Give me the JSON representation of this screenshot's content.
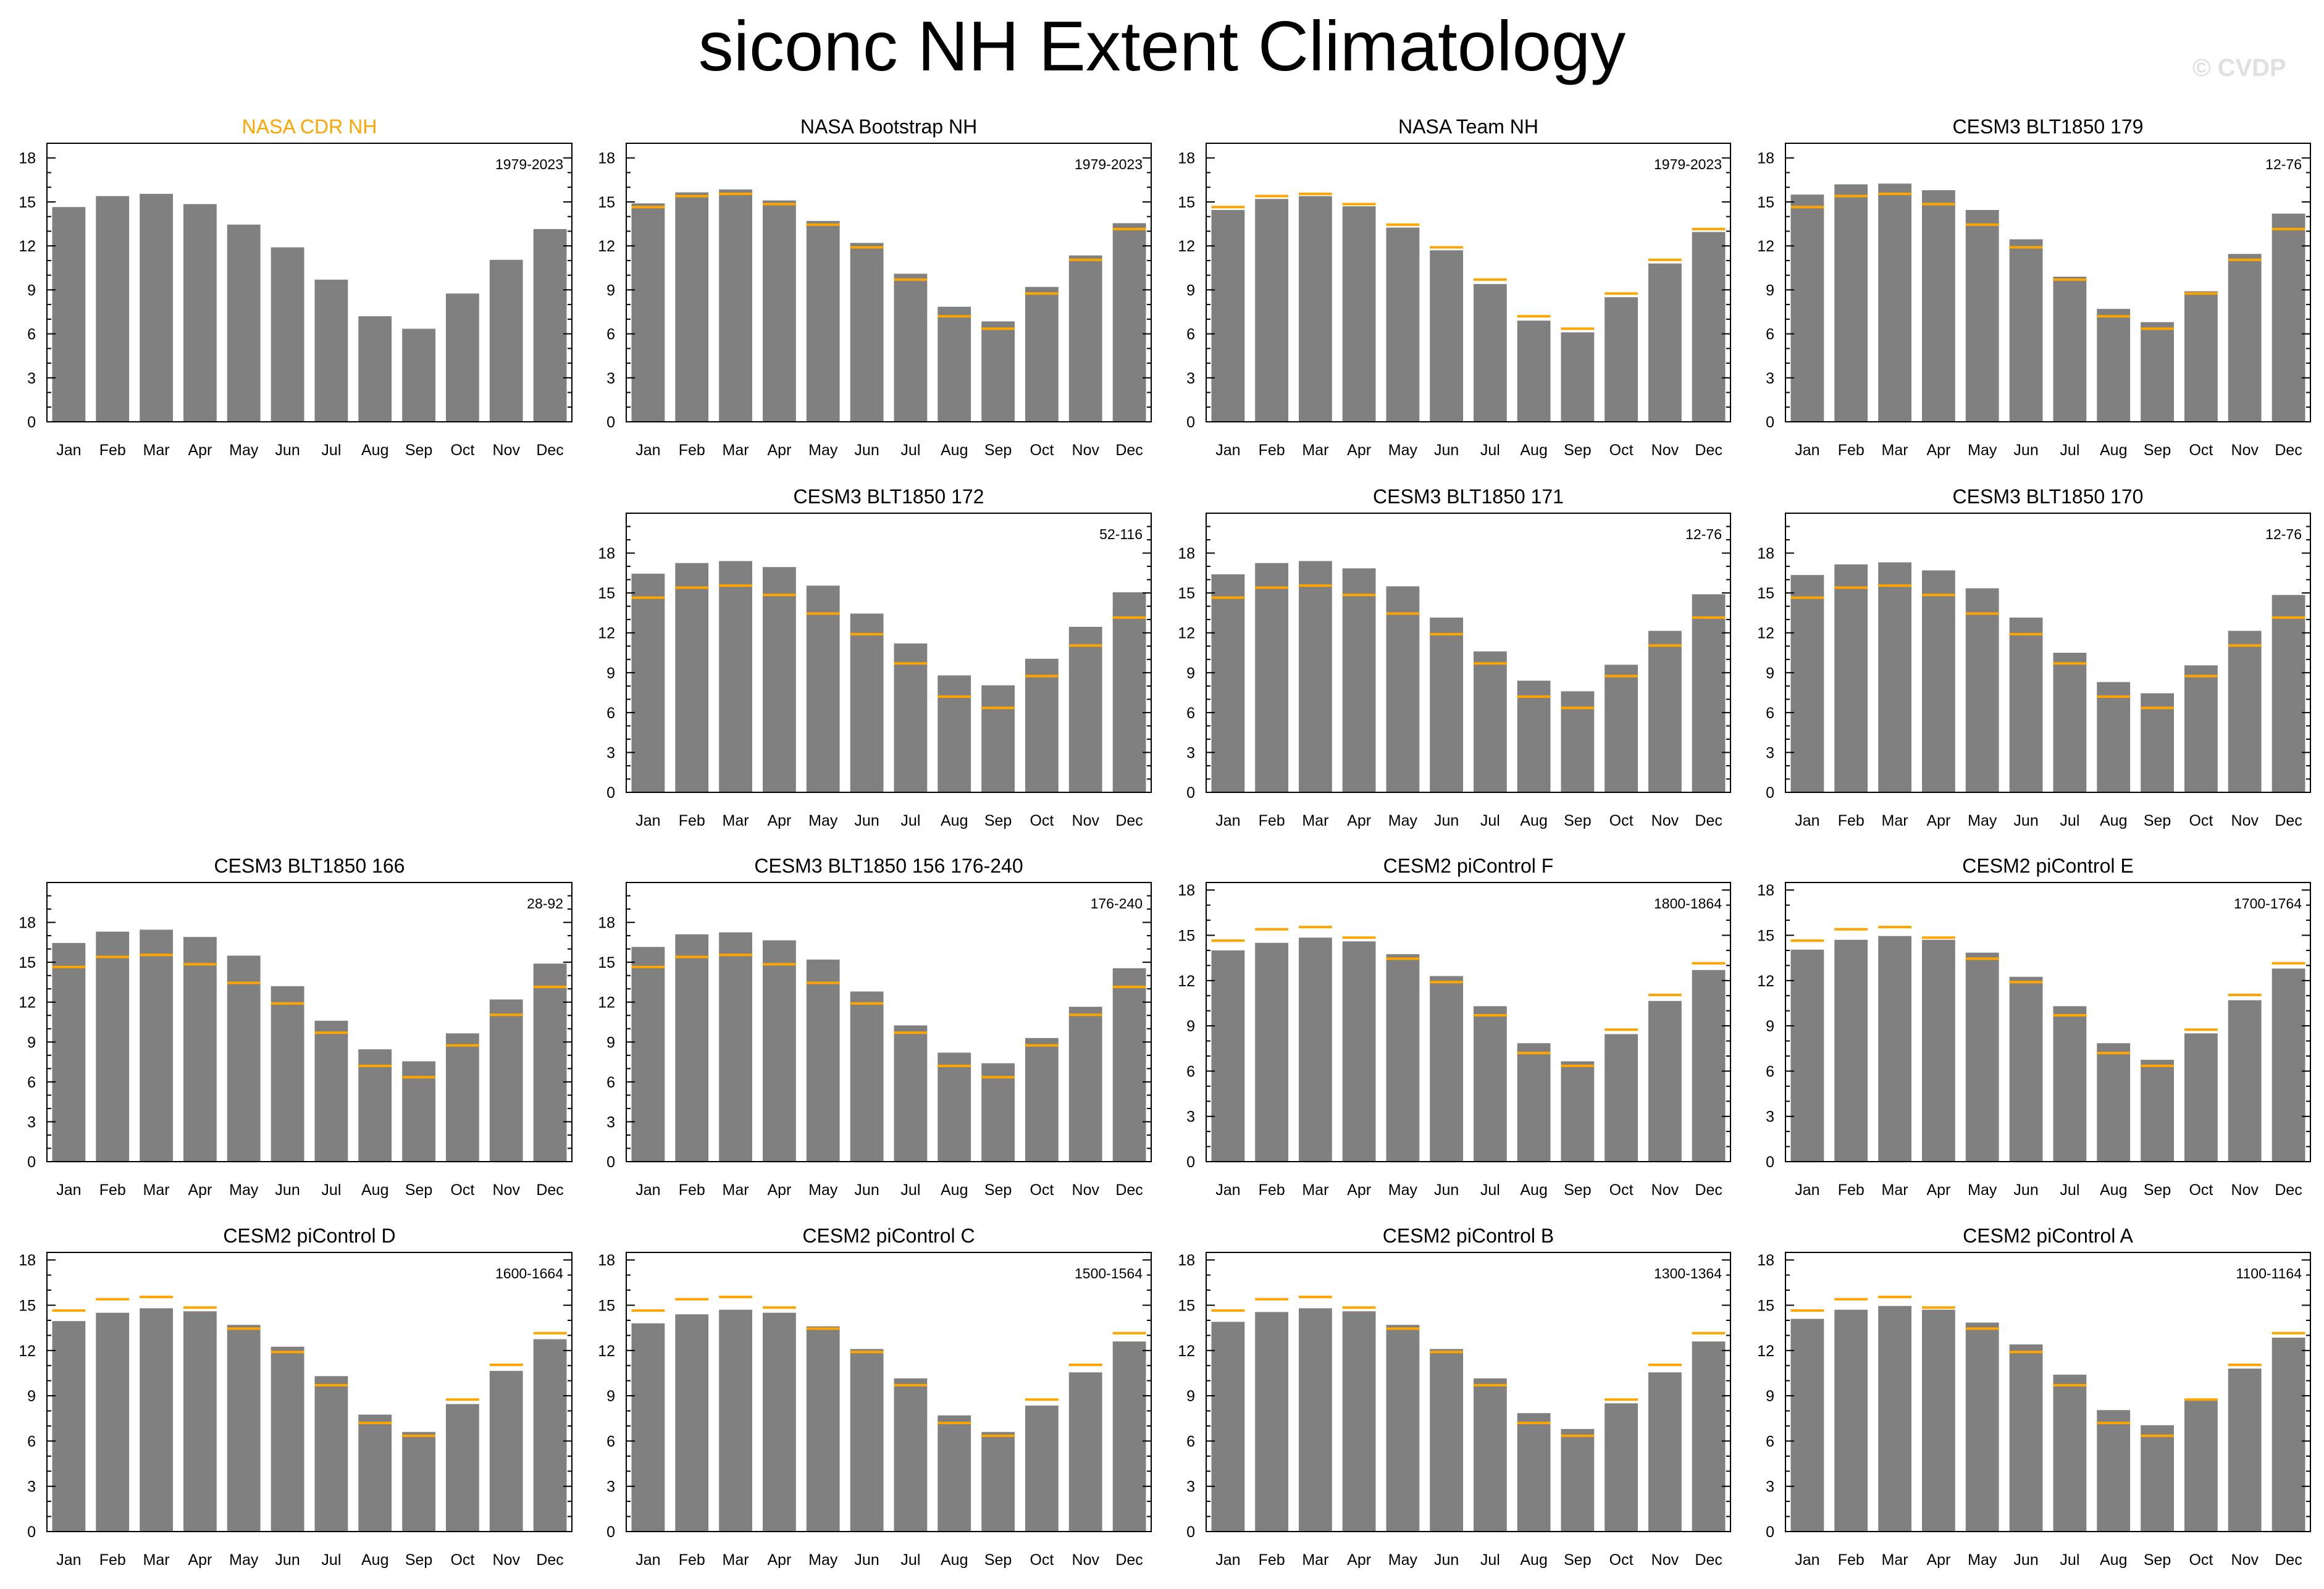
{
  "title": "siconc NH Extent Climatology",
  "watermark": "© CVDP",
  "colors": {
    "bar": "#808080",
    "reference": "#FFA500",
    "title_highlight": "#FFA500",
    "axis": "#000000"
  },
  "chart_data": [
    {
      "type": "bar",
      "title": "NASA CDR NH",
      "period": "1979-2023",
      "highlight_title": true,
      "categories": [
        "Jan",
        "Feb",
        "Mar",
        "Apr",
        "May",
        "Jun",
        "Jul",
        "Aug",
        "Sep",
        "Oct",
        "Nov",
        "Dec"
      ],
      "ylim": [
        0,
        19
      ],
      "yticks": [
        0,
        3,
        6,
        9,
        12,
        15,
        18
      ],
      "values": [
        14.65,
        15.4,
        15.55,
        14.85,
        13.45,
        11.9,
        9.7,
        7.2,
        6.35,
        8.75,
        11.05,
        13.15
      ],
      "reference": []
    },
    {
      "type": "bar",
      "title": "NASA Bootstrap NH",
      "period": "1979-2023",
      "categories": [
        "Jan",
        "Feb",
        "Mar",
        "Apr",
        "May",
        "Jun",
        "Jul",
        "Aug",
        "Sep",
        "Oct",
        "Nov",
        "Dec"
      ],
      "ylim": [
        0,
        19
      ],
      "yticks": [
        0,
        3,
        6,
        9,
        12,
        15,
        18
      ],
      "values": [
        14.9,
        15.65,
        15.85,
        15.1,
        13.7,
        12.2,
        10.1,
        7.85,
        6.85,
        9.2,
        11.35,
        13.55
      ],
      "reference": [
        14.65,
        15.4,
        15.55,
        14.85,
        13.45,
        11.9,
        9.7,
        7.2,
        6.35,
        8.75,
        11.05,
        13.15
      ]
    },
    {
      "type": "bar",
      "title": "NASA Team NH",
      "period": "1979-2023",
      "categories": [
        "Jan",
        "Feb",
        "Mar",
        "Apr",
        "May",
        "Jun",
        "Jul",
        "Aug",
        "Sep",
        "Oct",
        "Nov",
        "Dec"
      ],
      "ylim": [
        0,
        19
      ],
      "yticks": [
        0,
        3,
        6,
        9,
        12,
        15,
        18
      ],
      "values": [
        14.45,
        15.2,
        15.4,
        14.7,
        13.25,
        11.7,
        9.4,
        6.9,
        6.1,
        8.5,
        10.8,
        12.95
      ],
      "reference": [
        14.65,
        15.4,
        15.55,
        14.85,
        13.45,
        11.9,
        9.7,
        7.2,
        6.35,
        8.75,
        11.05,
        13.15
      ]
    },
    {
      "type": "bar",
      "title": "CESM3 BLT1850 179",
      "period": "12-76",
      "categories": [
        "Jan",
        "Feb",
        "Mar",
        "Apr",
        "May",
        "Jun",
        "Jul",
        "Aug",
        "Sep",
        "Oct",
        "Nov",
        "Dec"
      ],
      "ylim": [
        0,
        19
      ],
      "yticks": [
        0,
        3,
        6,
        9,
        12,
        15,
        18
      ],
      "values": [
        15.5,
        16.2,
        16.25,
        15.8,
        14.45,
        12.45,
        9.9,
        7.7,
        6.8,
        8.9,
        11.45,
        14.2
      ],
      "reference": [
        14.65,
        15.4,
        15.55,
        14.85,
        13.45,
        11.9,
        9.7,
        7.2,
        6.35,
        8.75,
        11.05,
        13.15
      ]
    },
    {
      "type": "bar",
      "title": "CESM3 BLT1850 172",
      "period": "52-116",
      "categories": [
        "Jan",
        "Feb",
        "Mar",
        "Apr",
        "May",
        "Jun",
        "Jul",
        "Aug",
        "Sep",
        "Oct",
        "Nov",
        "Dec"
      ],
      "ylim": [
        0,
        21
      ],
      "yticks": [
        0,
        3,
        6,
        9,
        12,
        15,
        18
      ],
      "values": [
        16.45,
        17.25,
        17.4,
        16.95,
        15.55,
        13.45,
        11.2,
        8.8,
        8.05,
        10.05,
        12.45,
        15.05
      ],
      "reference": [
        14.65,
        15.4,
        15.55,
        14.85,
        13.45,
        11.9,
        9.7,
        7.2,
        6.35,
        8.75,
        11.05,
        13.15
      ]
    },
    {
      "type": "bar",
      "title": "CESM3 BLT1850 171",
      "period": "12-76",
      "categories": [
        "Jan",
        "Feb",
        "Mar",
        "Apr",
        "May",
        "Jun",
        "Jul",
        "Aug",
        "Sep",
        "Oct",
        "Nov",
        "Dec"
      ],
      "ylim": [
        0,
        21
      ],
      "yticks": [
        0,
        3,
        6,
        9,
        12,
        15,
        18
      ],
      "values": [
        16.4,
        17.25,
        17.4,
        16.85,
        15.5,
        13.15,
        10.6,
        8.4,
        7.6,
        9.6,
        12.15,
        14.9
      ],
      "reference": [
        14.65,
        15.4,
        15.55,
        14.85,
        13.45,
        11.9,
        9.7,
        7.2,
        6.35,
        8.75,
        11.05,
        13.15
      ]
    },
    {
      "type": "bar",
      "title": "CESM3 BLT1850 170",
      "period": "12-76",
      "categories": [
        "Jan",
        "Feb",
        "Mar",
        "Apr",
        "May",
        "Jun",
        "Jul",
        "Aug",
        "Sep",
        "Oct",
        "Nov",
        "Dec"
      ],
      "ylim": [
        0,
        21
      ],
      "yticks": [
        0,
        3,
        6,
        9,
        12,
        15,
        18
      ],
      "values": [
        16.35,
        17.15,
        17.3,
        16.7,
        15.35,
        13.15,
        10.5,
        8.3,
        7.45,
        9.55,
        12.15,
        14.85
      ],
      "reference": [
        14.65,
        15.4,
        15.55,
        14.85,
        13.45,
        11.9,
        9.7,
        7.2,
        6.35,
        8.75,
        11.05,
        13.15
      ]
    },
    {
      "type": "bar",
      "title": "CESM3 BLT1850 166",
      "period": "28-92",
      "categories": [
        "Jan",
        "Feb",
        "Mar",
        "Apr",
        "May",
        "Jun",
        "Jul",
        "Aug",
        "Sep",
        "Oct",
        "Nov",
        "Dec"
      ],
      "ylim": [
        0,
        21
      ],
      "yticks": [
        0,
        3,
        6,
        9,
        12,
        15,
        18
      ],
      "values": [
        16.45,
        17.3,
        17.45,
        16.9,
        15.5,
        13.2,
        10.6,
        8.45,
        7.55,
        9.65,
        12.2,
        14.9
      ],
      "reference": [
        14.65,
        15.4,
        15.55,
        14.85,
        13.45,
        11.9,
        9.7,
        7.2,
        6.35,
        8.75,
        11.05,
        13.15
      ]
    },
    {
      "type": "bar",
      "title": "CESM3 BLT1850 156 176-240",
      "period": "176-240",
      "categories": [
        "Jan",
        "Feb",
        "Mar",
        "Apr",
        "May",
        "Jun",
        "Jul",
        "Aug",
        "Sep",
        "Oct",
        "Nov",
        "Dec"
      ],
      "ylim": [
        0,
        21
      ],
      "yticks": [
        0,
        3,
        6,
        9,
        12,
        15,
        18
      ],
      "values": [
        16.15,
        17.1,
        17.25,
        16.65,
        15.2,
        12.8,
        10.25,
        8.2,
        7.4,
        9.3,
        11.65,
        14.55
      ],
      "reference": [
        14.65,
        15.4,
        15.55,
        14.85,
        13.45,
        11.9,
        9.7,
        7.2,
        6.35,
        8.75,
        11.05,
        13.15
      ]
    },
    {
      "type": "bar",
      "title": "CESM2 piControl F",
      "period": "1800-1864",
      "categories": [
        "Jan",
        "Feb",
        "Mar",
        "Apr",
        "May",
        "Jun",
        "Jul",
        "Aug",
        "Sep",
        "Oct",
        "Nov",
        "Dec"
      ],
      "ylim": [
        0,
        18.5
      ],
      "yticks": [
        0,
        3,
        6,
        9,
        12,
        15,
        18
      ],
      "values": [
        14.0,
        14.5,
        14.85,
        14.6,
        13.75,
        12.3,
        10.3,
        7.85,
        6.65,
        8.45,
        10.65,
        12.7
      ],
      "reference": [
        14.65,
        15.4,
        15.55,
        14.85,
        13.45,
        11.9,
        9.7,
        7.2,
        6.35,
        8.75,
        11.05,
        13.15
      ]
    },
    {
      "type": "bar",
      "title": "CESM2 piControl E",
      "period": "1700-1764",
      "categories": [
        "Jan",
        "Feb",
        "Mar",
        "Apr",
        "May",
        "Jun",
        "Jul",
        "Aug",
        "Sep",
        "Oct",
        "Nov",
        "Dec"
      ],
      "ylim": [
        0,
        18.5
      ],
      "yticks": [
        0,
        3,
        6,
        9,
        12,
        15,
        18
      ],
      "values": [
        14.05,
        14.7,
        14.95,
        14.7,
        13.85,
        12.25,
        10.3,
        7.85,
        6.75,
        8.5,
        10.7,
        12.8
      ],
      "reference": [
        14.65,
        15.4,
        15.55,
        14.85,
        13.45,
        11.9,
        9.7,
        7.2,
        6.35,
        8.75,
        11.05,
        13.15
      ]
    },
    {
      "type": "bar",
      "title": "CESM2 piControl D",
      "period": "1600-1664",
      "categories": [
        "Jan",
        "Feb",
        "Mar",
        "Apr",
        "May",
        "Jun",
        "Jul",
        "Aug",
        "Sep",
        "Oct",
        "Nov",
        "Dec"
      ],
      "ylim": [
        0,
        18.5
      ],
      "yticks": [
        0,
        3,
        6,
        9,
        12,
        15,
        18
      ],
      "values": [
        13.95,
        14.5,
        14.8,
        14.6,
        13.7,
        12.25,
        10.3,
        7.75,
        6.6,
        8.45,
        10.65,
        12.75
      ],
      "reference": [
        14.65,
        15.4,
        15.55,
        14.85,
        13.45,
        11.9,
        9.7,
        7.2,
        6.35,
        8.75,
        11.05,
        13.15
      ]
    },
    {
      "type": "bar",
      "title": "CESM2 piControl C",
      "period": "1500-1564",
      "categories": [
        "Jan",
        "Feb",
        "Mar",
        "Apr",
        "May",
        "Jun",
        "Jul",
        "Aug",
        "Sep",
        "Oct",
        "Nov",
        "Dec"
      ],
      "ylim": [
        0,
        18.5
      ],
      "yticks": [
        0,
        3,
        6,
        9,
        12,
        15,
        18
      ],
      "values": [
        13.8,
        14.4,
        14.7,
        14.5,
        13.6,
        12.1,
        10.15,
        7.7,
        6.6,
        8.35,
        10.55,
        12.6
      ],
      "reference": [
        14.65,
        15.4,
        15.55,
        14.85,
        13.45,
        11.9,
        9.7,
        7.2,
        6.35,
        8.75,
        11.05,
        13.15
      ]
    },
    {
      "type": "bar",
      "title": "CESM2 piControl B",
      "period": "1300-1364",
      "categories": [
        "Jan",
        "Feb",
        "Mar",
        "Apr",
        "May",
        "Jun",
        "Jul",
        "Aug",
        "Sep",
        "Oct",
        "Nov",
        "Dec"
      ],
      "ylim": [
        0,
        18.5
      ],
      "yticks": [
        0,
        3,
        6,
        9,
        12,
        15,
        18
      ],
      "values": [
        13.9,
        14.55,
        14.8,
        14.6,
        13.7,
        12.1,
        10.15,
        7.85,
        6.8,
        8.5,
        10.55,
        12.6
      ],
      "reference": [
        14.65,
        15.4,
        15.55,
        14.85,
        13.45,
        11.9,
        9.7,
        7.2,
        6.35,
        8.75,
        11.05,
        13.15
      ]
    },
    {
      "type": "bar",
      "title": "CESM2 piControl A",
      "period": "1100-1164",
      "categories": [
        "Jan",
        "Feb",
        "Mar",
        "Apr",
        "May",
        "Jun",
        "Jul",
        "Aug",
        "Sep",
        "Oct",
        "Nov",
        "Dec"
      ],
      "ylim": [
        0,
        18.5
      ],
      "yticks": [
        0,
        3,
        6,
        9,
        12,
        15,
        18
      ],
      "values": [
        14.1,
        14.7,
        14.95,
        14.7,
        13.85,
        12.4,
        10.4,
        8.05,
        7.05,
        8.7,
        10.8,
        12.85
      ],
      "reference": [
        14.65,
        15.4,
        15.55,
        14.85,
        13.45,
        11.9,
        9.7,
        7.2,
        6.35,
        8.75,
        11.05,
        13.15
      ]
    }
  ]
}
